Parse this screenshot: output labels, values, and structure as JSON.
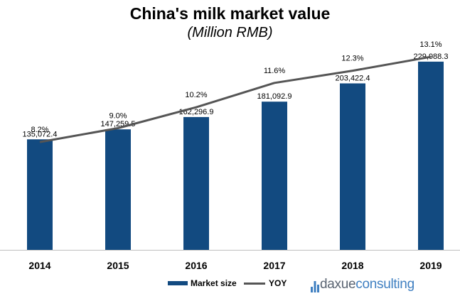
{
  "chart_data": {
    "type": "bar",
    "title": "China's milk market value",
    "subtitle": "(Million RMB)",
    "categories": [
      "2014",
      "2015",
      "2016",
      "2017",
      "2018",
      "2019"
    ],
    "series": [
      {
        "name": "Market size",
        "type": "bar",
        "values": [
          135072.4,
          147259.5,
          162296.9,
          181092.9,
          203422.4,
          229988.3
        ],
        "labels": [
          "135,072.4",
          "147,259.5",
          "162,296.9",
          "181,092.9",
          "203,422.4",
          "229,988.3"
        ],
        "color": "#124a80"
      },
      {
        "name": "YOY",
        "type": "line",
        "values": [
          8.2,
          9.0,
          10.2,
          11.6,
          12.3,
          13.1
        ],
        "labels": [
          "8.2%",
          "9.0%",
          "10.2%",
          "11.6%",
          "12.3%",
          "13.1%"
        ],
        "color": "#555555"
      }
    ],
    "ylim": [
      0,
      255000
    ],
    "ylim_secondary": [
      2,
      14
    ],
    "grid": false,
    "legend_position": "bottom"
  },
  "branding": {
    "logo_part1": "daxue",
    "logo_part2": "consulting",
    "logo_color_primary": "#5a6472",
    "logo_color_accent": "#3f7fc1"
  }
}
